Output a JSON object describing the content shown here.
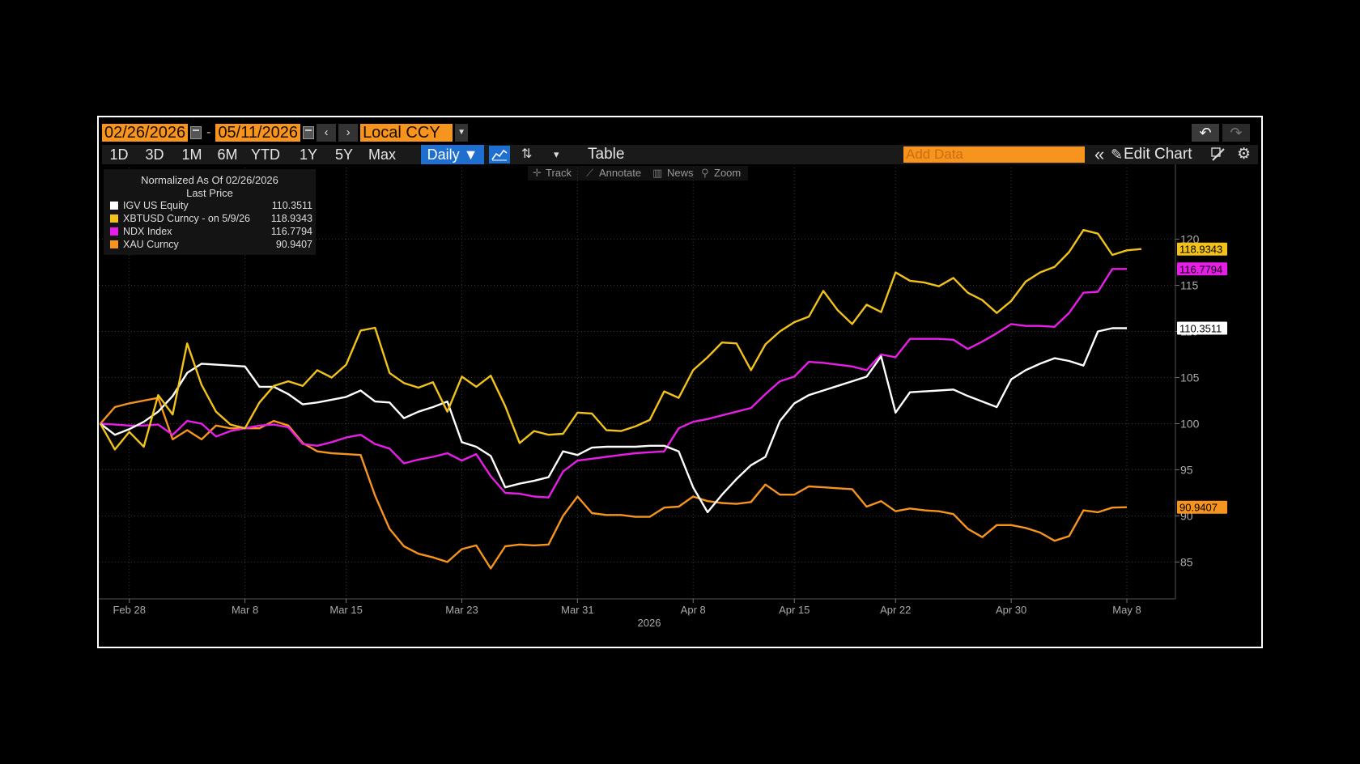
{
  "header": {
    "start_date": "02/26/2026",
    "end_date": "05/11/2026",
    "date_sep": "-",
    "currency": "Local CCY",
    "prev": "‹",
    "next": "›",
    "undo": "↶",
    "redo": "↷"
  },
  "toolbar": {
    "periods": [
      "1D",
      "3D",
      "1M",
      "6M",
      "YTD",
      "1Y",
      "5Y",
      "Max"
    ],
    "frequency": "Daily ▼",
    "table_label": "Table",
    "add_data_placeholder": "Add Data",
    "collapse_glyph": "«",
    "edit_chart_label": "Edit Chart",
    "pencil_glyph": "✎",
    "gear_glyph": "⚙",
    "tools_glyph": "⇅",
    "more_glyph": "▾",
    "linechart_glyph": "⦿"
  },
  "subtoolbar": {
    "track": "Track",
    "annotate": "Annotate",
    "news": "News",
    "zoom": "Zoom"
  },
  "legend": {
    "header1": "Normalized As Of 02/26/2026",
    "header2": "Last Price",
    "items": [
      {
        "name": "IGV US Equity",
        "value": "110.3511",
        "color": "#ffffff"
      },
      {
        "name": "XBTUSD Curncy -   on 5/9/26",
        "value": "118.9343",
        "color": "#f2c21a"
      },
      {
        "name": "NDX Index",
        "value": "116.7794",
        "color": "#e81ee8"
      },
      {
        "name": "XAU Curncy",
        "value": "90.9407",
        "color": "#f7941d"
      }
    ]
  },
  "chart_data": {
    "type": "line",
    "title": "",
    "xlabel": "2026",
    "ylabel": "",
    "ylim": [
      81,
      124
    ],
    "yticks": [
      85,
      90,
      95,
      100,
      105,
      110,
      115,
      120
    ],
    "xticks": [
      {
        "label": "Feb 28",
        "day": 2
      },
      {
        "label": "Mar 8",
        "day": 10
      },
      {
        "label": "Mar 15",
        "day": 17
      },
      {
        "label": "Mar 23",
        "day": 25
      },
      {
        "label": "Mar 31",
        "day": 33
      },
      {
        "label": "Apr 8",
        "day": 41
      },
      {
        "label": "Apr 15",
        "day": 48
      },
      {
        "label": "Apr 22",
        "day": 55
      },
      {
        "label": "Apr 30",
        "day": 63
      },
      {
        "label": "May 8",
        "day": 71
      }
    ],
    "x_domain": [
      0,
      74
    ],
    "grid": true,
    "legend": "top-left",
    "series": [
      {
        "name": "XAU Curncy",
        "color": "#f7941d",
        "last_label": "90.9407",
        "x": [
          0,
          1,
          2,
          3,
          4,
          5,
          6,
          7,
          8,
          9,
          10,
          11,
          12,
          13,
          14,
          15,
          16,
          17,
          18,
          19,
          20,
          21,
          22,
          23,
          24,
          25,
          26,
          27,
          28,
          29,
          30,
          31,
          32,
          33,
          34,
          35,
          36,
          37,
          38,
          39,
          40,
          41,
          42,
          43,
          44,
          45,
          46,
          47,
          48,
          49,
          50,
          51,
          52,
          53,
          54,
          55,
          56,
          57,
          58,
          59,
          60,
          61,
          62,
          63,
          64,
          65,
          66,
          67,
          68,
          69,
          70,
          71
        ],
        "values": [
          100,
          101.8,
          102.2,
          102.5,
          102.8,
          98.3,
          99.3,
          98.3,
          99.8,
          99.5,
          99.5,
          99.5,
          100.3,
          99.8,
          97.9,
          97.0,
          96.8,
          96.7,
          96.6,
          92.2,
          88.6,
          86.7,
          85.9,
          85.5,
          85.0,
          86.4,
          86.8,
          84.3,
          86.7,
          86.9,
          86.8,
          86.9,
          90.0,
          92.1,
          90.3,
          90.1,
          90.1,
          89.9,
          89.9,
          90.9,
          91.0,
          92.1,
          91.6,
          91.4,
          91.3,
          91.5,
          93.4,
          92.3,
          92.3,
          93.2,
          93.1,
          93.0,
          92.9,
          91.0,
          91.6,
          90.5,
          90.8,
          90.6,
          90.5,
          90.2,
          88.6,
          87.7,
          89.0,
          89.0,
          88.7,
          88.2,
          87.3,
          87.8,
          90.6,
          90.4,
          90.9,
          90.9407
        ]
      },
      {
        "name": "NDX Index",
        "color": "#e81ee8",
        "last_label": "116.7794",
        "x": [
          0,
          1,
          2,
          3,
          4,
          5,
          6,
          7,
          8,
          9,
          10,
          11,
          12,
          13,
          14,
          15,
          16,
          17,
          18,
          19,
          20,
          21,
          22,
          23,
          24,
          25,
          26,
          27,
          28,
          29,
          30,
          31,
          32,
          33,
          34,
          35,
          36,
          37,
          38,
          39,
          40,
          41,
          42,
          43,
          44,
          45,
          46,
          47,
          48,
          49,
          50,
          51,
          52,
          53,
          54,
          55,
          56,
          57,
          58,
          59,
          60,
          61,
          62,
          63,
          64,
          65,
          66,
          67,
          68,
          69,
          70,
          71
        ],
        "values": [
          100,
          99.9,
          99.8,
          99.8,
          99.9,
          98.8,
          100.3,
          100.0,
          98.6,
          99.2,
          99.5,
          99.8,
          99.9,
          99.6,
          97.8,
          97.6,
          98.0,
          98.5,
          98.8,
          97.8,
          97.3,
          95.7,
          96.1,
          96.4,
          96.8,
          96.0,
          96.7,
          94.3,
          92.5,
          92.4,
          92.1,
          92.0,
          94.8,
          96.0,
          96.2,
          96.4,
          96.6,
          96.8,
          96.9,
          97.0,
          99.5,
          100.2,
          100.5,
          100.9,
          101.3,
          101.7,
          103.2,
          104.6,
          105.1,
          106.7,
          106.6,
          106.4,
          106.2,
          105.8,
          107.5,
          107.2,
          109.2,
          109.2,
          109.2,
          109.1,
          108.1,
          108.9,
          109.8,
          110.8,
          110.6,
          110.6,
          110.5,
          112.0,
          114.2,
          114.3,
          116.7794,
          116.7794
        ]
      },
      {
        "name": "IGV US Equity",
        "color": "#ffffff",
        "last_label": "110.3511",
        "x": [
          0,
          1,
          2,
          3,
          4,
          5,
          6,
          7,
          8,
          9,
          10,
          11,
          12,
          13,
          14,
          15,
          16,
          17,
          18,
          19,
          20,
          21,
          22,
          23,
          24,
          25,
          26,
          27,
          28,
          29,
          30,
          31,
          32,
          33,
          34,
          35,
          36,
          37,
          38,
          39,
          40,
          41,
          42,
          43,
          44,
          45,
          46,
          47,
          48,
          49,
          50,
          51,
          52,
          53,
          54,
          55,
          56,
          57,
          58,
          59,
          60,
          61,
          62,
          63,
          64,
          65,
          66,
          67,
          68,
          69,
          70,
          71
        ],
        "values": [
          100,
          98.8,
          99.4,
          100.2,
          101.3,
          103.0,
          105.5,
          106.5,
          106.4,
          106.3,
          106.2,
          104.0,
          104.0,
          103.2,
          102.1,
          102.3,
          102.6,
          102.9,
          103.6,
          102.4,
          102.3,
          100.6,
          101.3,
          101.8,
          102.4,
          98.0,
          97.5,
          96.5,
          93.1,
          93.5,
          93.8,
          94.2,
          97.0,
          96.6,
          97.4,
          97.5,
          97.5,
          97.5,
          97.6,
          97.6,
          97.0,
          93.1,
          90.4,
          92.3,
          94.0,
          95.5,
          96.4,
          100.3,
          102.2,
          103.1,
          103.6,
          104.1,
          104.6,
          105.1,
          107.3,
          101.2,
          103.4,
          103.5,
          103.6,
          103.7,
          103.0,
          102.4,
          101.8,
          104.8,
          105.8,
          106.5,
          107.1,
          106.8,
          106.3,
          110.0,
          110.3511,
          110.3511
        ]
      },
      {
        "name": "XBTUSD Curncy",
        "color": "#f2c21a",
        "last_label": "118.9343",
        "x": [
          0,
          1,
          2,
          3,
          4,
          5,
          6,
          7,
          8,
          9,
          10,
          11,
          12,
          13,
          14,
          15,
          16,
          17,
          18,
          19,
          20,
          21,
          22,
          23,
          24,
          25,
          26,
          27,
          28,
          29,
          30,
          31,
          32,
          33,
          34,
          35,
          36,
          37,
          38,
          39,
          40,
          41,
          42,
          43,
          44,
          45,
          46,
          47,
          48,
          49,
          50,
          51,
          52,
          53,
          54,
          55,
          56,
          57,
          58,
          59,
          60,
          61,
          62,
          63,
          64,
          65,
          66,
          67,
          68,
          69,
          70,
          71,
          72
        ],
        "values": [
          100,
          97.2,
          99.1,
          97.5,
          103.1,
          101.0,
          108.7,
          104.2,
          101.3,
          99.9,
          99.5,
          102.3,
          104.1,
          104.6,
          104.1,
          105.8,
          105.0,
          106.4,
          110.1,
          110.4,
          105.5,
          104.4,
          103.9,
          104.5,
          101.3,
          105.1,
          104.0,
          105.2,
          101.9,
          97.9,
          99.2,
          98.8,
          98.9,
          101.2,
          101.1,
          99.3,
          99.2,
          99.7,
          100.4,
          103.5,
          102.8,
          105.8,
          107.2,
          108.8,
          108.7,
          105.8,
          108.6,
          110.0,
          111.0,
          111.6,
          114.4,
          112.3,
          110.8,
          112.9,
          112.1,
          116.4,
          115.5,
          115.3,
          114.9,
          115.8,
          114.2,
          113.4,
          112.0,
          113.3,
          115.4,
          116.4,
          117.0,
          118.6,
          121.0,
          120.6,
          118.3,
          118.8,
          118.9343
        ]
      }
    ]
  }
}
